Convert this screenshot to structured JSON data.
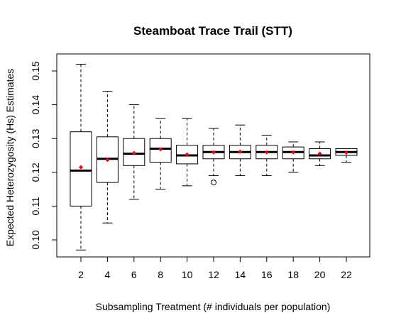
{
  "chart_data": {
    "type": "box",
    "title": "Steamboat Trace Trail (STT)",
    "xlabel": "Subsampling Treatment (# individuals per population)",
    "ylabel": "Expected Heterozygosity (Hs) Estimates",
    "ylim": [
      0.095,
      0.155
    ],
    "y_ticks": [
      0.1,
      0.11,
      0.12,
      0.13,
      0.14,
      0.15
    ],
    "y_tick_labels": [
      "0.10",
      "0.11",
      "0.12",
      "0.13",
      "0.14",
      "0.15"
    ],
    "grid": false,
    "categories": [
      "2",
      "4",
      "6",
      "8",
      "10",
      "12",
      "14",
      "16",
      "18",
      "20",
      "22"
    ],
    "boxes": [
      {
        "whisker_low": 0.097,
        "q1": 0.11,
        "median": 0.1205,
        "q3": 0.132,
        "whisker_high": 0.152,
        "mean": 0.1215,
        "outliers": []
      },
      {
        "whisker_low": 0.105,
        "q1": 0.117,
        "median": 0.124,
        "q3": 0.1305,
        "whisker_high": 0.144,
        "mean": 0.1237,
        "outliers": []
      },
      {
        "whisker_low": 0.112,
        "q1": 0.122,
        "median": 0.1255,
        "q3": 0.13,
        "whisker_high": 0.14,
        "mean": 0.1257,
        "outliers": []
      },
      {
        "whisker_low": 0.115,
        "q1": 0.123,
        "median": 0.127,
        "q3": 0.13,
        "whisker_high": 0.136,
        "mean": 0.1268,
        "outliers": []
      },
      {
        "whisker_low": 0.116,
        "q1": 0.1225,
        "median": 0.125,
        "q3": 0.128,
        "whisker_high": 0.136,
        "mean": 0.1253,
        "outliers": []
      },
      {
        "whisker_low": 0.119,
        "q1": 0.124,
        "median": 0.126,
        "q3": 0.128,
        "whisker_high": 0.133,
        "mean": 0.1259,
        "outliers": [
          0.117
        ]
      },
      {
        "whisker_low": 0.119,
        "q1": 0.124,
        "median": 0.126,
        "q3": 0.128,
        "whisker_high": 0.134,
        "mean": 0.1261,
        "outliers": []
      },
      {
        "whisker_low": 0.119,
        "q1": 0.124,
        "median": 0.126,
        "q3": 0.128,
        "whisker_high": 0.131,
        "mean": 0.1259,
        "outliers": []
      },
      {
        "whisker_low": 0.12,
        "q1": 0.124,
        "median": 0.126,
        "q3": 0.1275,
        "whisker_high": 0.129,
        "mean": 0.1259,
        "outliers": []
      },
      {
        "whisker_low": 0.122,
        "q1": 0.124,
        "median": 0.125,
        "q3": 0.127,
        "whisker_high": 0.129,
        "mean": 0.1255,
        "outliers": []
      },
      {
        "whisker_low": 0.123,
        "q1": 0.125,
        "median": 0.126,
        "q3": 0.127,
        "whisker_high": 0.127,
        "mean": 0.1258,
        "outliers": []
      }
    ],
    "colors": {
      "mean_marker": "#ff0000",
      "box_stroke": "#000000"
    }
  }
}
